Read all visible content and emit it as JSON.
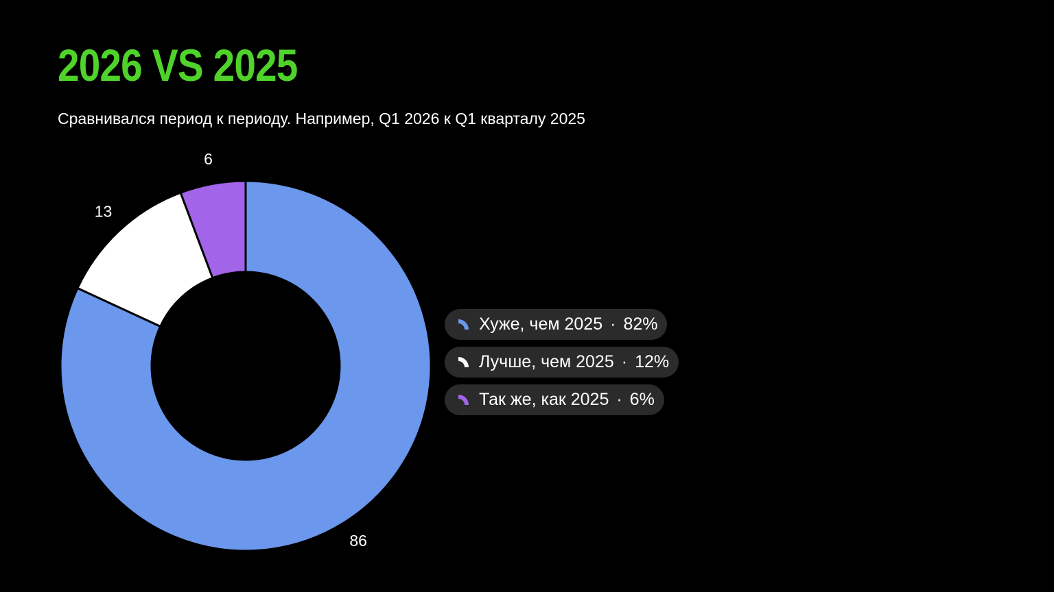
{
  "header": {
    "title": "2026 VS 2025",
    "subtitle": "Сравнивался период к периоду. Например, Q1 2026 к Q1 кварталу 2025"
  },
  "chart_data": {
    "type": "pie",
    "donut": true,
    "categories": [
      "Хуже, чем 2025",
      "Лучше, чем 2025",
      "Так же, как 2025"
    ],
    "values": [
      86,
      13,
      6
    ],
    "percent_labels": [
      "82%",
      "12%",
      "6%"
    ],
    "colors": [
      "#6b97ec",
      "#ffffff",
      "#a264e8"
    ],
    "legend_position": "right"
  },
  "legend": {
    "items": [
      {
        "label": "Хуже, чем 2025",
        "dot": "·",
        "percent": "82%",
        "color": "#6b97ec",
        "icon": "slice-icon"
      },
      {
        "label": "Лучше, чем 2025",
        "dot": "·",
        "percent": "12%",
        "color": "#ffffff",
        "icon": "slice-icon"
      },
      {
        "label": "Так же, как 2025",
        "dot": "·",
        "percent": "6%",
        "color": "#a264e8",
        "icon": "slice-icon"
      }
    ]
  }
}
